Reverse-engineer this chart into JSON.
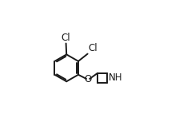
{
  "bg_color": "#ffffff",
  "line_color": "#1a1a1a",
  "line_width": 1.4,
  "font_size": 8.5,
  "label_color": "#1a1a1a",
  "cl1_label": "Cl",
  "cl2_label": "Cl",
  "o_label": "O",
  "nh_label": "NH",
  "figsize": [
    2.44,
    1.72
  ],
  "dpi": 100
}
